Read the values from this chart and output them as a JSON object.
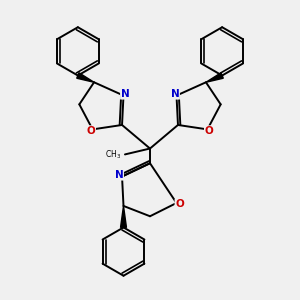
{
  "bg_color": "#f0f0f0",
  "bond_color": "#000000",
  "N_color": "#0000cc",
  "O_color": "#cc0000",
  "line_width": 1.4,
  "figsize": [
    3.0,
    3.0
  ],
  "dpi": 100,
  "xlim": [
    0,
    10
  ],
  "ylim": [
    0,
    10
  ]
}
